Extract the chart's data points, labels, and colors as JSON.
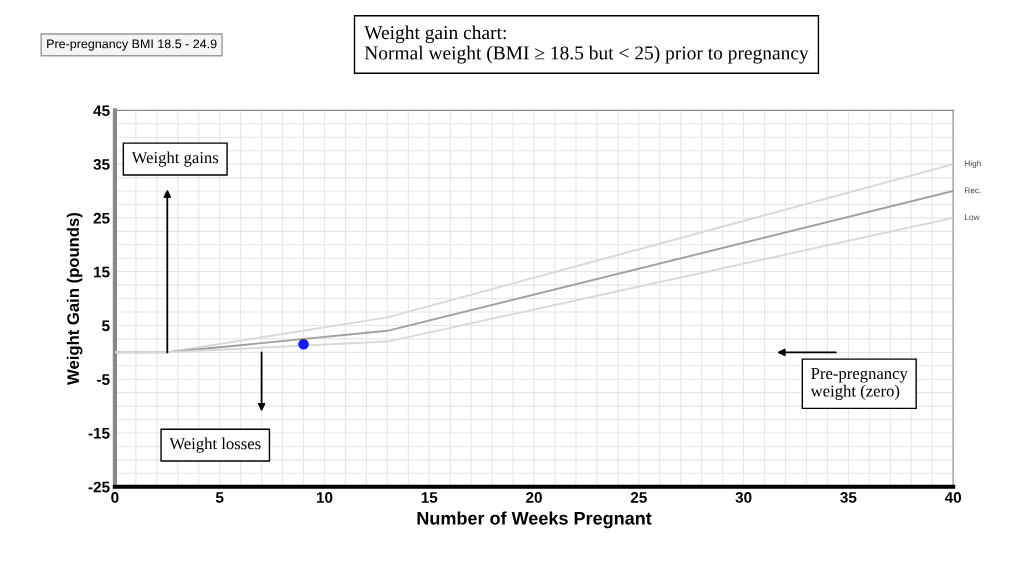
{
  "chart_data": {
    "type": "line",
    "title": "Weight gain chart:",
    "subtitle": "Normal weight (BMI ≥ 18.5 but < 25) prior to pregnancy",
    "xlabel": "Number of Weeks Pregnant",
    "ylabel": "Weight Gain (pounds)",
    "x": [
      0,
      2.5,
      13,
      40
    ],
    "series": [
      {
        "name": "High",
        "color": "#d9d9d9",
        "values": [
          0,
          0,
          6.5,
          35
        ]
      },
      {
        "name": "Rec.",
        "color": "#a0a0a0",
        "values": [
          0,
          0,
          4,
          30
        ]
      },
      {
        "name": "Low",
        "color": "#d9d9d9",
        "values": [
          0,
          0,
          2,
          25
        ]
      },
      {
        "type": "scatter",
        "color": "#1a1aff",
        "x": [
          9
        ],
        "values": [
          1.5
        ]
      }
    ],
    "xlim": [
      0,
      40
    ],
    "xticks": [
      0,
      5,
      10,
      15,
      20,
      25,
      30,
      35,
      40
    ],
    "ylim": [
      -25,
      45
    ],
    "yticks": [
      -25,
      -15,
      -5,
      5,
      15,
      25,
      35,
      45
    ],
    "grid": true,
    "annotations": [
      "Pre-pregnancy BMI 18.5 - 24.9",
      "Weight gains",
      "Weight losses",
      "Pre-pregnancy weight (zero)"
    ]
  }
}
